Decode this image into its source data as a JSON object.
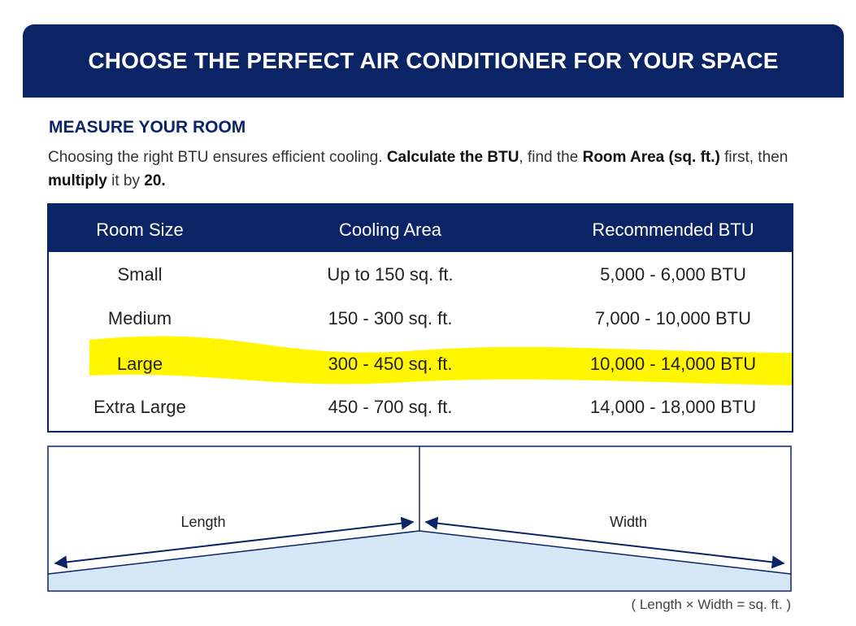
{
  "banner": {
    "title": "CHOOSE THE PERFECT AIR CONDITIONER FOR YOUR SPACE"
  },
  "section": {
    "heading": "MEASURE YOUR ROOM",
    "intro": [
      {
        "text": "Choosing the right BTU ensures efficient cooling. ",
        "bold": false
      },
      {
        "text": "Calculate the BTU",
        "bold": true
      },
      {
        "text": ", find the ",
        "bold": false
      },
      {
        "text": "Room Area (sq. ft.)",
        "bold": true
      },
      {
        "text": " first, then ",
        "bold": false
      },
      {
        "text": "multiply",
        "bold": true
      },
      {
        "text": " it by ",
        "bold": false
      },
      {
        "text": "20.",
        "bold": true
      }
    ]
  },
  "table": {
    "header": [
      "Room Size",
      "Cooling Area",
      "Recommended BTU"
    ],
    "rows": [
      [
        "Small",
        "Up to 150 sq. ft.",
        "5,000 - 6,000 BTU"
      ],
      [
        "Medium",
        "150 - 300 sq. ft.",
        "7,000 - 10,000 BTU"
      ],
      [
        "Large",
        "300 - 450 sq. ft.",
        "10,000 - 14,000 BTU"
      ],
      [
        "Extra Large",
        "450 - 700 sq. ft.",
        "14,000 - 18,000 BTU"
      ]
    ]
  },
  "diagram": {
    "length_label": "Length",
    "width_label": "Width",
    "formula": "( Length × Width = sq. ft. )"
  }
}
